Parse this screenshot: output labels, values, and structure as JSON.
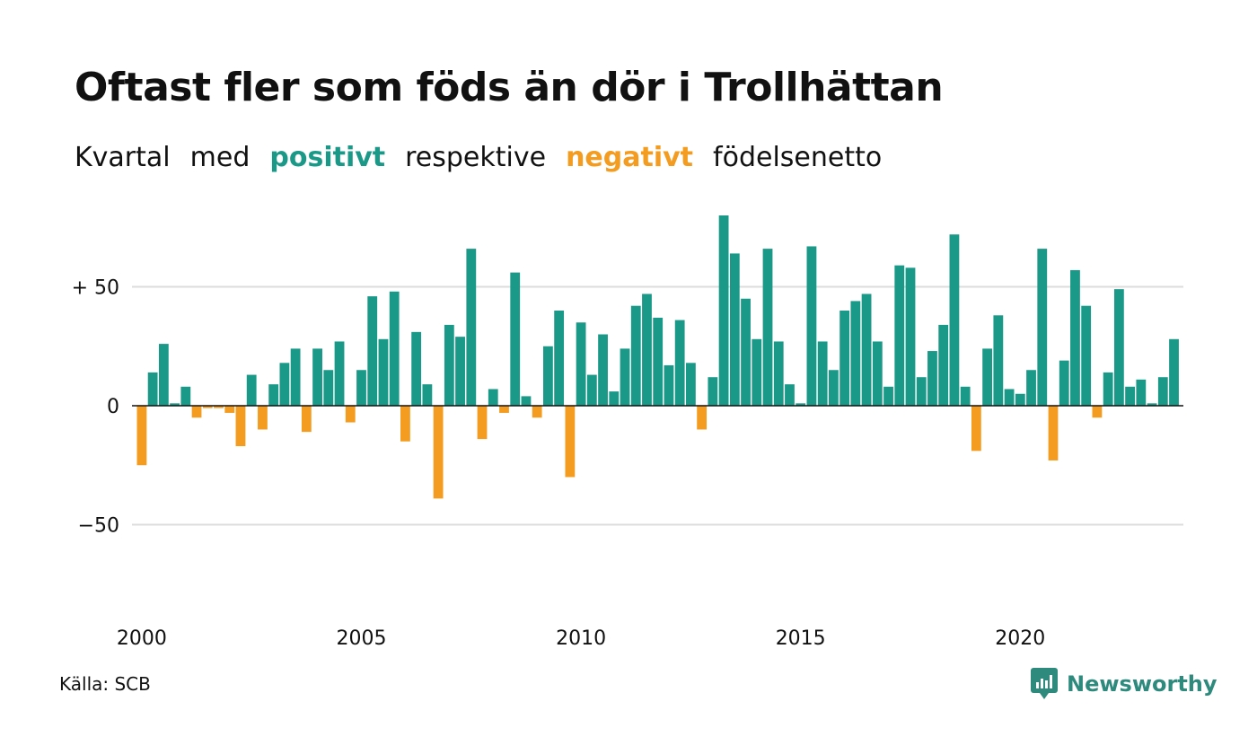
{
  "title": "Oftast fler som föds än dör i Trollhättan",
  "subtitle": {
    "part1": "Kvartal",
    "part2": "med",
    "positive": "positivt",
    "part3": "respektive",
    "negative": "negativt",
    "part4": "födelsenetto"
  },
  "source": "Källa: SCB",
  "brand": "Newsworthy",
  "colors": {
    "positive": "#1a9988",
    "negative": "#f39c1f",
    "brand": "#2d8a7d"
  },
  "chart_data": {
    "type": "bar",
    "x_start": "2000 Q1",
    "ylim": [
      -80,
      80
    ],
    "yticks": [
      {
        "value": 50,
        "label": "+ 50"
      },
      {
        "value": 0,
        "label": "0"
      },
      {
        "value": -50,
        "label": "−50"
      }
    ],
    "xticks": [
      "2000",
      "2005",
      "2010",
      "2015",
      "2020"
    ],
    "grid": true,
    "values": [
      -25,
      14,
      26,
      1,
      8,
      -5,
      -1,
      -1,
      -3,
      -17,
      13,
      -10,
      9,
      18,
      24,
      -11,
      24,
      15,
      27,
      -7,
      15,
      46,
      28,
      48,
      -15,
      31,
      9,
      -39,
      34,
      29,
      66,
      -14,
      7,
      -3,
      56,
      4,
      -5,
      25,
      40,
      -30,
      35,
      13,
      30,
      6,
      24,
      42,
      47,
      37,
      17,
      36,
      18,
      -10,
      12,
      80,
      64,
      45,
      28,
      66,
      27,
      9,
      1,
      67,
      27,
      15,
      40,
      44,
      47,
      27,
      8,
      59,
      58,
      12,
      23,
      34,
      72,
      8,
      -19,
      24,
      38,
      7,
      5,
      15,
      66,
      -23,
      19,
      57,
      42,
      -5,
      14,
      49,
      8,
      11,
      1,
      12,
      28
    ]
  }
}
